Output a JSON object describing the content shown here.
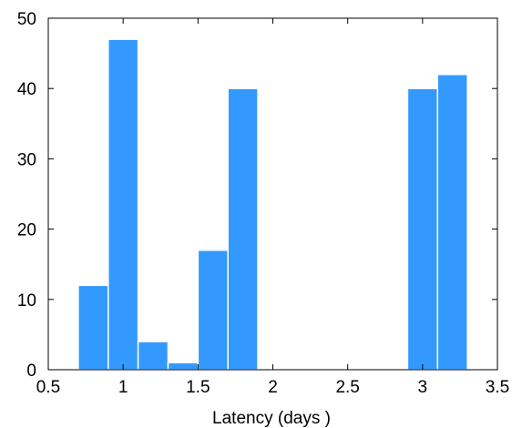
{
  "chart_data": {
    "type": "bar",
    "title": "",
    "xlabel": "Latency (days )",
    "ylabel": "",
    "xlim": [
      0.5,
      3.5
    ],
    "ylim": [
      0,
      50
    ],
    "xticks": [
      "0.5",
      "1",
      "1.5",
      "2",
      "2.5",
      "3",
      "3.5"
    ],
    "yticks": [
      "0",
      "10",
      "20",
      "30",
      "40",
      "50"
    ],
    "grid": false,
    "bin_width": 0.2,
    "bars": [
      {
        "x0": 0.7,
        "x1": 0.9,
        "value": 12
      },
      {
        "x0": 0.9,
        "x1": 1.1,
        "value": 47
      },
      {
        "x0": 1.1,
        "x1": 1.3,
        "value": 4
      },
      {
        "x0": 1.3,
        "x1": 1.5,
        "value": 1
      },
      {
        "x0": 1.5,
        "x1": 1.7,
        "value": 17
      },
      {
        "x0": 1.7,
        "x1": 1.9,
        "value": 40
      },
      {
        "x0": 2.9,
        "x1": 3.1,
        "value": 40
      },
      {
        "x0": 3.1,
        "x1": 3.3,
        "value": 42
      }
    ],
    "colors": {
      "bar_fill": "#3399ff",
      "bar_edge": "#ffffff",
      "axis": "#000000"
    }
  }
}
